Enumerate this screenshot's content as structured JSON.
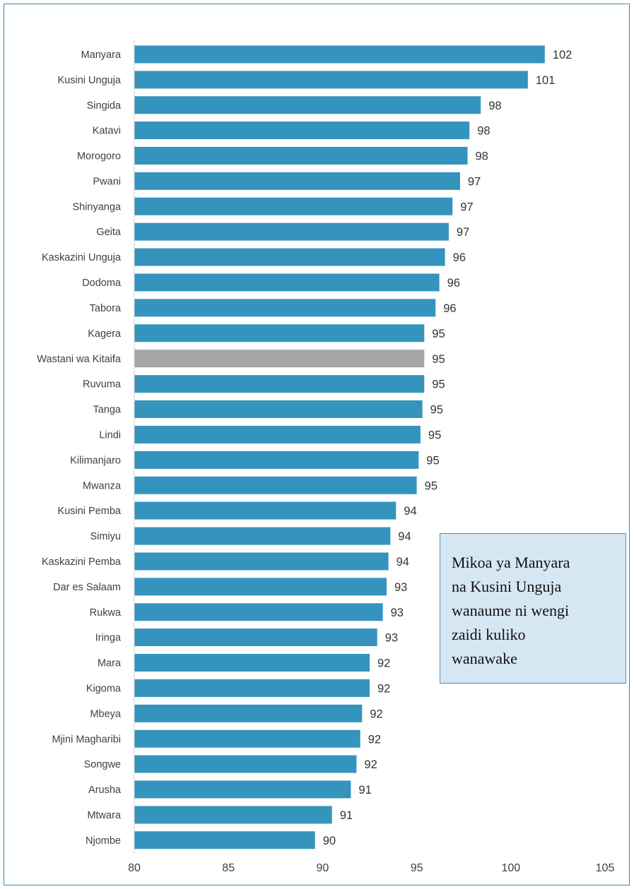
{
  "chart_data": {
    "type": "bar",
    "orientation": "horizontal",
    "categories": [
      "Manyara",
      "Kusini Unguja",
      "Singida",
      "Katavi",
      "Morogoro",
      "Pwani",
      "Shinyanga",
      "Geita",
      "Kaskazini Unguja",
      "Dodoma",
      "Tabora",
      "Kagera",
      "Wastani wa Kitaifa",
      "Ruvuma",
      "Tanga",
      "Lindi",
      "Kilimanjaro",
      "Mwanza",
      "Kusini Pemba",
      "Simiyu",
      "Kaskazini Pemba",
      "Dar es Salaam",
      "Rukwa",
      "Iringa",
      "Mara",
      "Kigoma",
      "Mbeya",
      "Mjini Magharibi",
      "Songwe",
      "Arusha",
      "Mtwara",
      "Njombe"
    ],
    "values": [
      101.8,
      100.9,
      98.4,
      97.8,
      97.7,
      97.3,
      96.9,
      96.7,
      96.5,
      96.2,
      96.0,
      95.4,
      95.4,
      95.4,
      95.3,
      95.2,
      95.1,
      95.0,
      93.9,
      93.6,
      93.5,
      93.4,
      93.2,
      92.9,
      92.5,
      92.5,
      92.1,
      92.0,
      91.8,
      91.5,
      90.5,
      89.6
    ],
    "labels": [
      "102",
      "101",
      "98",
      "98",
      "98",
      "97",
      "97",
      "97",
      "96",
      "96",
      "96",
      "95",
      "95",
      "95",
      "95",
      "95",
      "95",
      "95",
      "94",
      "94",
      "94",
      "93",
      "93",
      "93",
      "92",
      "92",
      "92",
      "92",
      "92",
      "91",
      "91",
      "90"
    ],
    "highlight_category": "Wastani wa Kitaifa",
    "xlim": [
      80,
      105
    ],
    "xticks": [
      "80",
      "85",
      "90",
      "95",
      "100",
      "105"
    ],
    "title": "",
    "xlabel": "",
    "ylabel": "",
    "grid": false,
    "colors": {
      "bar": "#3594bd",
      "highlight": "#a6a6a6",
      "text": "#404040",
      "label": "#333333"
    }
  },
  "annotation": {
    "lines": [
      "Mikoa ya Manyara",
      "na Kusini Unguja",
      "wanaume ni wengi",
      "zaidi kuliko",
      "wanawake"
    ]
  }
}
